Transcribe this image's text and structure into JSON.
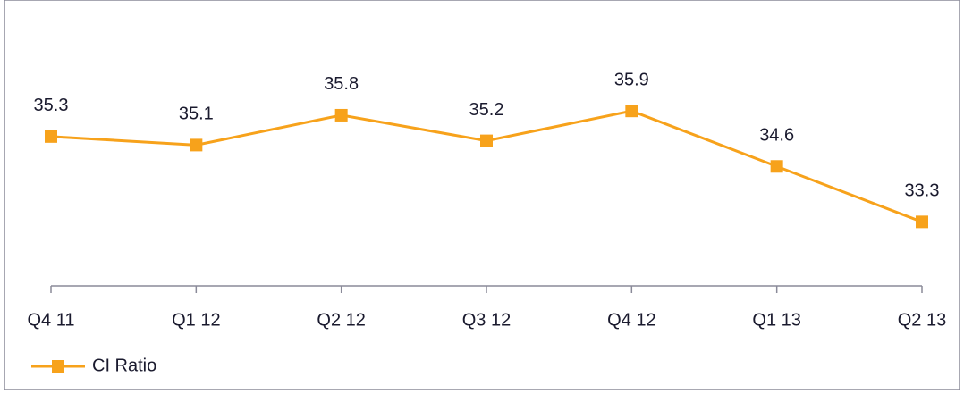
{
  "chart_data": {
    "type": "line",
    "categories": [
      "Q4 11",
      "Q1 12",
      "Q2 12",
      "Q3 12",
      "Q4 12",
      "Q1 13",
      "Q2 13"
    ],
    "series": [
      {
        "name": "CI Ratio",
        "color": "#f7a21b",
        "values": [
          35.3,
          35.1,
          35.8,
          35.2,
          35.9,
          34.6,
          33.3
        ]
      }
    ],
    "ylim": [
      31.8,
      38.5
    ],
    "data_labels": true,
    "legend": "bottom-left"
  }
}
